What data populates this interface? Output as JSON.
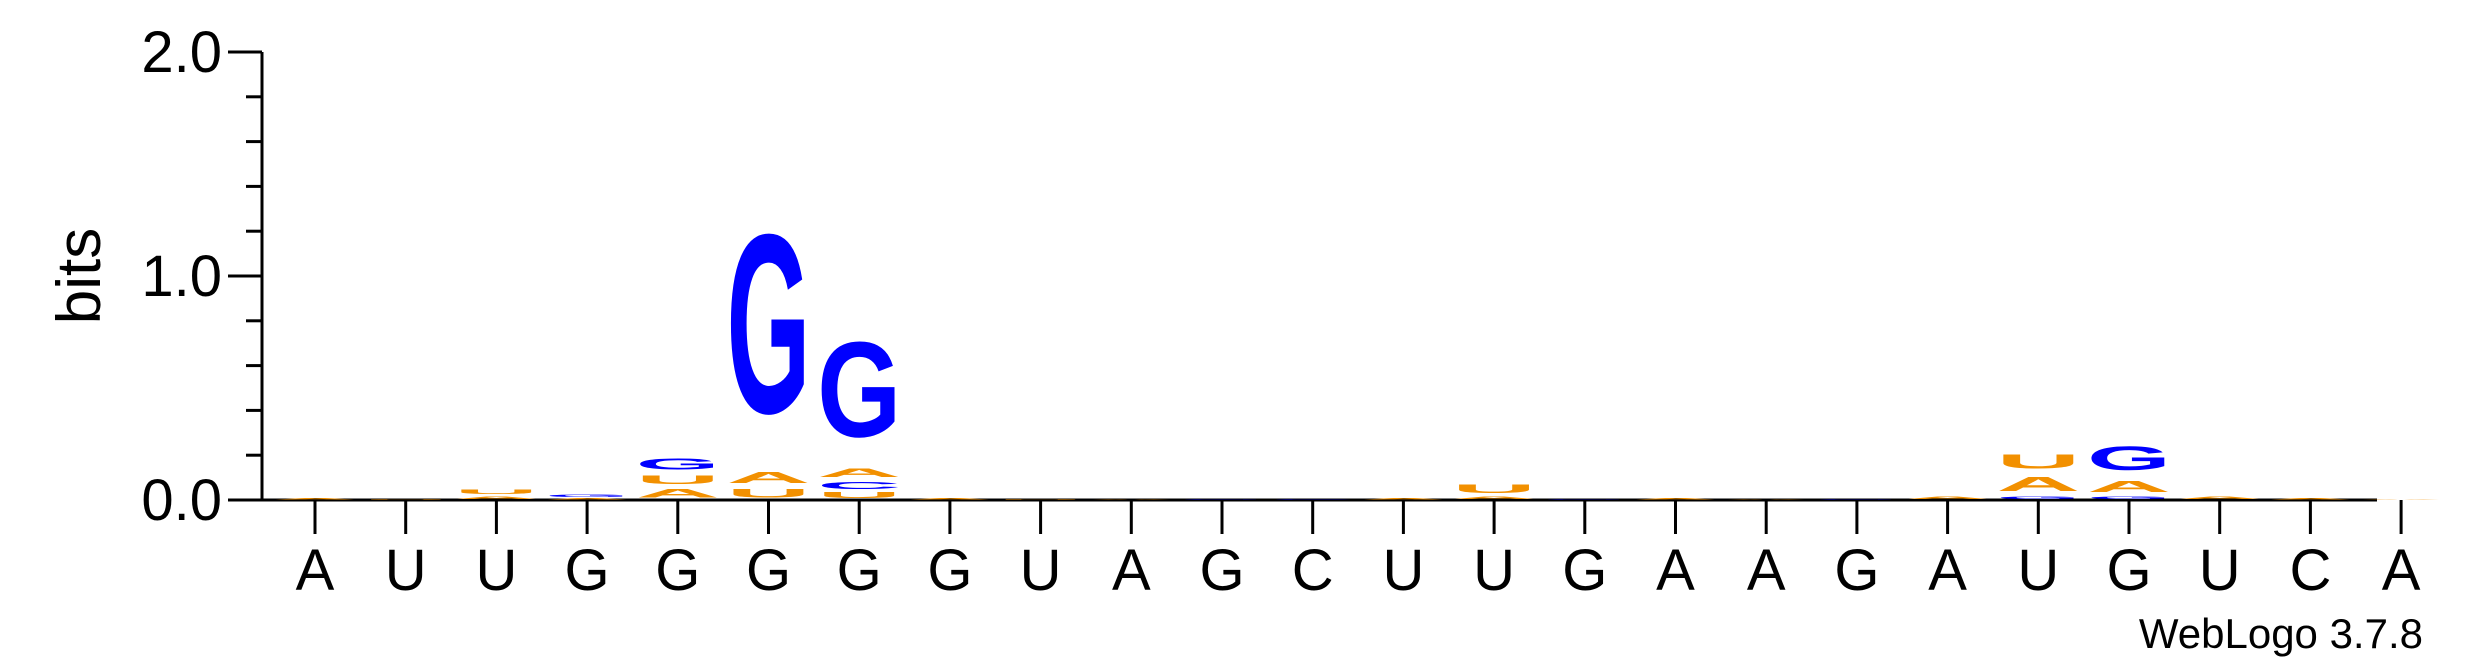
{
  "chart_data": {
    "type": "sequence-logo",
    "ylabel": "bits",
    "ylim": [
      0,
      2.0
    ],
    "yticks": [
      "0.0",
      "1.0",
      "2.0"
    ],
    "consensus": [
      "A",
      "U",
      "U",
      "G",
      "G",
      "G",
      "G",
      "G",
      "U",
      "A",
      "G",
      "C",
      "U",
      "U",
      "G",
      "A",
      "A",
      "G",
      "A",
      "U",
      "G",
      "U",
      "C",
      "A"
    ],
    "colors": {
      "A": "#f29000",
      "U": "#f29000",
      "G": "#0000ff",
      "C": "#0000ff"
    },
    "positions": [
      [
        {
          "letter": "A",
          "height": 0.01
        }
      ],
      [
        {
          "letter": "U",
          "height": 0.005
        }
      ],
      [
        {
          "letter": "A",
          "height": 0.02
        },
        {
          "letter": "U",
          "height": 0.03
        }
      ],
      [
        {
          "letter": "A",
          "height": 0.01
        },
        {
          "letter": "G",
          "height": 0.02
        }
      ],
      [
        {
          "letter": "A",
          "height": 0.06
        },
        {
          "letter": "U",
          "height": 0.06
        },
        {
          "letter": "G",
          "height": 0.08
        }
      ],
      [
        {
          "letter": "U",
          "height": 0.06
        },
        {
          "letter": "A",
          "height": 0.08
        },
        {
          "letter": "G",
          "height": 1.28
        }
      ],
      [
        {
          "letter": "U",
          "height": 0.04
        },
        {
          "letter": "C",
          "height": 0.05
        },
        {
          "letter": "A",
          "height": 0.06
        },
        {
          "letter": "G",
          "height": 0.68
        }
      ],
      [
        {
          "letter": "A",
          "height": 0.01
        }
      ],
      [
        {
          "letter": "U",
          "height": 0.002
        }
      ],
      [
        {
          "letter": "A",
          "height": 0.002
        }
      ],
      [
        {
          "letter": "G",
          "height": 0.002
        }
      ],
      [
        {
          "letter": "C",
          "height": 0.002
        }
      ],
      [
        {
          "letter": "A",
          "height": 0.01
        }
      ],
      [
        {
          "letter": "A",
          "height": 0.02
        },
        {
          "letter": "U",
          "height": 0.06
        }
      ],
      [
        {
          "letter": "G",
          "height": 0.002
        }
      ],
      [
        {
          "letter": "A",
          "height": 0.01
        }
      ],
      [
        {
          "letter": "A",
          "height": 0.002
        }
      ],
      [
        {
          "letter": "G",
          "height": 0.002
        }
      ],
      [
        {
          "letter": "A",
          "height": 0.02
        }
      ],
      [
        {
          "letter": "G",
          "height": 0.02
        },
        {
          "letter": "A",
          "height": 0.1
        },
        {
          "letter": "U",
          "height": 0.1
        }
      ],
      [
        {
          "letter": "G",
          "height": 0.02
        },
        {
          "letter": "A",
          "height": 0.08
        },
        {
          "letter": "G",
          "height": 0.17
        }
      ],
      [
        {
          "letter": "A",
          "height": 0.02
        }
      ],
      [
        {
          "letter": "A",
          "height": 0.01
        }
      ],
      [
        {
          "letter": "A",
          "height": 0.002
        }
      ]
    ]
  },
  "footer": {
    "credit": "WebLogo 3.7.8"
  }
}
